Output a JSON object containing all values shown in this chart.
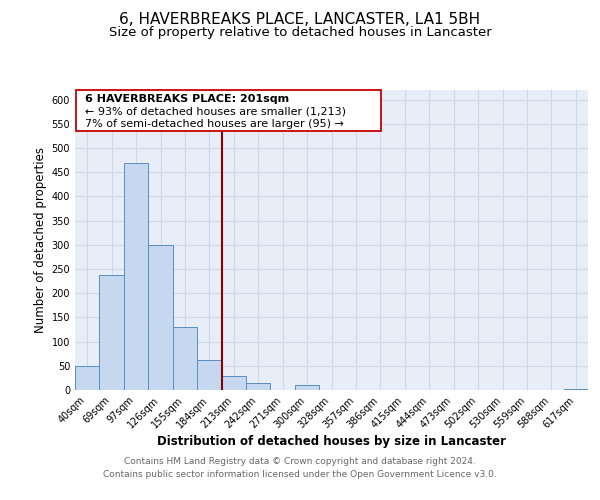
{
  "title": "6, HAVERBREAKS PLACE, LANCASTER, LA1 5BH",
  "subtitle": "Size of property relative to detached houses in Lancaster",
  "xlabel": "Distribution of detached houses by size in Lancaster",
  "ylabel": "Number of detached properties",
  "categories": [
    "40sqm",
    "69sqm",
    "97sqm",
    "126sqm",
    "155sqm",
    "184sqm",
    "213sqm",
    "242sqm",
    "271sqm",
    "300sqm",
    "328sqm",
    "357sqm",
    "386sqm",
    "415sqm",
    "444sqm",
    "473sqm",
    "502sqm",
    "530sqm",
    "559sqm",
    "588sqm",
    "617sqm"
  ],
  "values": [
    50,
    238,
    470,
    300,
    130,
    62,
    28,
    15,
    0,
    10,
    0,
    0,
    0,
    0,
    0,
    0,
    0,
    0,
    0,
    0,
    3
  ],
  "bar_color": "#c5d8ef",
  "bar_edge_color": "#5b8dc0",
  "ylim": [
    0,
    620
  ],
  "yticks": [
    0,
    50,
    100,
    150,
    200,
    250,
    300,
    350,
    400,
    450,
    500,
    550,
    600
  ],
  "vline_color": "#8b0000",
  "annotation_line1": "6 HAVERBREAKS PLACE: 201sqm",
  "annotation_line2": "← 93% of detached houses are smaller (1,213)",
  "annotation_line3": "7% of semi-detached houses are larger (95) →",
  "footer_line1": "Contains HM Land Registry data © Crown copyright and database right 2024.",
  "footer_line2": "Contains public sector information licensed under the Open Government Licence v3.0.",
  "plot_bg_color": "#e8eef8",
  "grid_color": "#d0d8e8",
  "title_fontsize": 11,
  "subtitle_fontsize": 9.5,
  "axis_label_fontsize": 8.5,
  "tick_fontsize": 7,
  "footer_fontsize": 6.5,
  "annot_fontsize": 8
}
